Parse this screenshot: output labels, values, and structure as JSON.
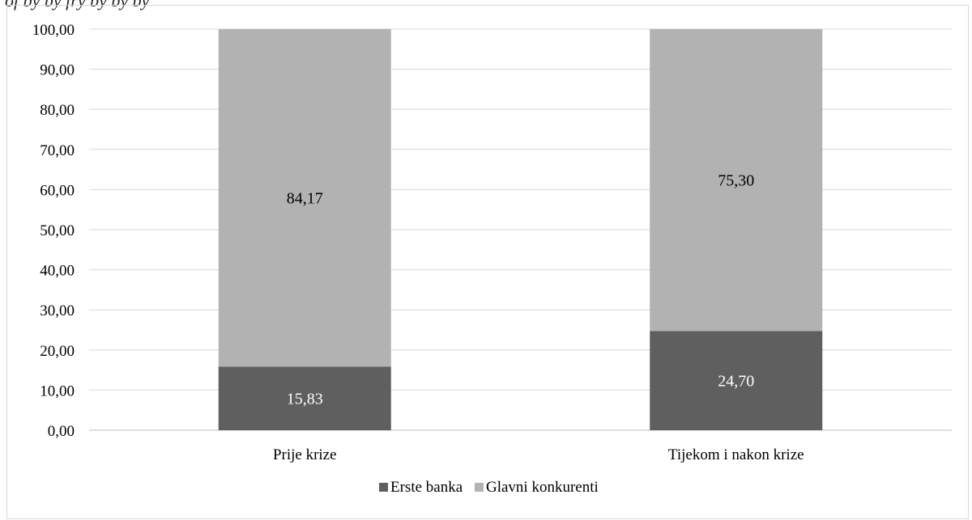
{
  "header": {
    "fragment": "of by by fry by by by"
  },
  "chart_data": {
    "type": "bar",
    "stacked": true,
    "categories": [
      "Prije krize",
      "Tijekom i nakon krize"
    ],
    "series": [
      {
        "name": "Erste banka",
        "values": [
          15.83,
          24.7
        ],
        "value_labels": [
          "15,83",
          "24,70"
        ],
        "color": "#5f5f5f",
        "label_color": "#ffffff"
      },
      {
        "name": "Glavni konkurenti",
        "values": [
          84.17,
          75.3
        ],
        "value_labels": [
          "84,17",
          "75,30"
        ],
        "color": "#b2b2b2",
        "label_color": "#000000"
      }
    ],
    "ylim": [
      0,
      100
    ],
    "yticks": [
      "0,00",
      "10,00",
      "20,00",
      "30,00",
      "40,00",
      "50,00",
      "60,00",
      "70,00",
      "80,00",
      "90,00",
      "100,00"
    ],
    "grid": true,
    "legend": "bottom-center",
    "title": "",
    "xlabel": "",
    "ylabel": ""
  }
}
